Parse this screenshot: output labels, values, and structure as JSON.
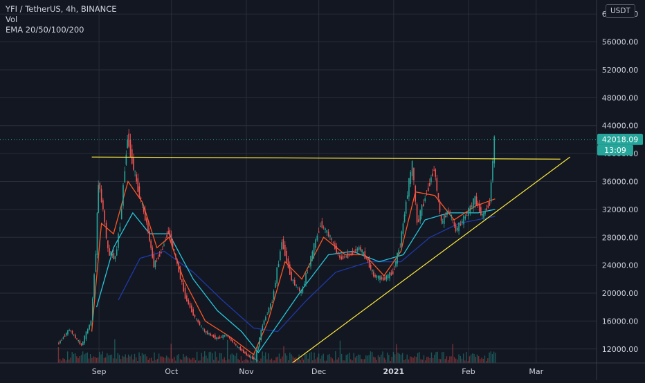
{
  "legend": {
    "symbol": "YFI / TetherUS, 4h, BINANCE",
    "volume": "Vol",
    "ema": "EMA 20/50/100/200"
  },
  "currency_button": "USDT",
  "price_axis": {
    "labels": [
      "12000.00",
      "16000.00",
      "20000.00",
      "24000.00",
      "28000.00",
      "32000.00",
      "36000.00",
      "40000.00",
      "44000.00",
      "48000.00",
      "52000.00",
      "56000.00",
      "60000.00"
    ],
    "last_price": "42018.09",
    "countdown": "13:09",
    "last_price_color": "#26a69a"
  },
  "time_axis": {
    "labels": [
      "Sep",
      "Oct",
      "Nov",
      "Dec",
      "2021",
      "Feb",
      "Mar"
    ]
  },
  "colors": {
    "background": "#131722",
    "grid": "#2a2e39",
    "up_candle": "#26a69a",
    "down_candle": "#ef5350",
    "trendline": "#ffeb3b",
    "ema20": "#ff5722",
    "ema50": "#26c6da",
    "ema100": "#1e3aa8"
  },
  "chart_data": {
    "type": "line",
    "title": "YFI / TetherUS, 4h, BINANCE",
    "ylim": [
      10000,
      62000
    ],
    "y_ticks": [
      12000,
      16000,
      20000,
      24000,
      28000,
      32000,
      36000,
      40000,
      44000,
      48000,
      52000,
      56000,
      60000
    ],
    "x_ticks": [
      "Sep",
      "Oct",
      "Nov",
      "Dec",
      "2021",
      "Feb",
      "Mar"
    ],
    "price_close": [
      {
        "x": "2020-08-15",
        "y": 12600
      },
      {
        "x": "2020-08-20",
        "y": 14800
      },
      {
        "x": "2020-08-25",
        "y": 12500
      },
      {
        "x": "2020-08-29",
        "y": 16000
      },
      {
        "x": "2020-08-31",
        "y": 26000
      },
      {
        "x": "2020-09-01",
        "y": 36000
      },
      {
        "x": "2020-09-03",
        "y": 32000
      },
      {
        "x": "2020-09-05",
        "y": 26000
      },
      {
        "x": "2020-09-08",
        "y": 25000
      },
      {
        "x": "2020-09-10",
        "y": 30000
      },
      {
        "x": "2020-09-12",
        "y": 38000
      },
      {
        "x": "2020-09-13",
        "y": 42500
      },
      {
        "x": "2020-09-15",
        "y": 39000
      },
      {
        "x": "2020-09-18",
        "y": 34000
      },
      {
        "x": "2020-09-21",
        "y": 30000
      },
      {
        "x": "2020-09-24",
        "y": 24000
      },
      {
        "x": "2020-09-27",
        "y": 26000
      },
      {
        "x": "2020-09-30",
        "y": 29000
      },
      {
        "x": "2020-10-03",
        "y": 25000
      },
      {
        "x": "2020-10-07",
        "y": 19500
      },
      {
        "x": "2020-10-11",
        "y": 16500
      },
      {
        "x": "2020-10-15",
        "y": 14500
      },
      {
        "x": "2020-10-20",
        "y": 13500
      },
      {
        "x": "2020-10-24",
        "y": 14000
      },
      {
        "x": "2020-10-28",
        "y": 12500
      },
      {
        "x": "2020-11-02",
        "y": 11000
      },
      {
        "x": "2020-11-05",
        "y": 10500
      },
      {
        "x": "2020-11-08",
        "y": 15500
      },
      {
        "x": "2020-11-12",
        "y": 19000
      },
      {
        "x": "2020-11-16",
        "y": 27500
      },
      {
        "x": "2020-11-20",
        "y": 22000
      },
      {
        "x": "2020-11-24",
        "y": 20000
      },
      {
        "x": "2020-11-28",
        "y": 25000
      },
      {
        "x": "2020-12-02",
        "y": 30000
      },
      {
        "x": "2020-12-06",
        "y": 28000
      },
      {
        "x": "2020-12-10",
        "y": 25000
      },
      {
        "x": "2020-12-14",
        "y": 25500
      },
      {
        "x": "2020-12-18",
        "y": 26500
      },
      {
        "x": "2020-12-21",
        "y": 25000
      },
      {
        "x": "2020-12-24",
        "y": 22500
      },
      {
        "x": "2020-12-28",
        "y": 22000
      },
      {
        "x": "2021-01-01",
        "y": 23000
      },
      {
        "x": "2021-01-04",
        "y": 27000
      },
      {
        "x": "2021-01-07",
        "y": 34500
      },
      {
        "x": "2021-01-09",
        "y": 38500
      },
      {
        "x": "2021-01-11",
        "y": 30000
      },
      {
        "x": "2021-01-15",
        "y": 34500
      },
      {
        "x": "2021-01-18",
        "y": 38000
      },
      {
        "x": "2021-01-21",
        "y": 30000
      },
      {
        "x": "2021-01-24",
        "y": 32000
      },
      {
        "x": "2021-01-27",
        "y": 29000
      },
      {
        "x": "2021-01-31",
        "y": 31000
      },
      {
        "x": "2021-02-04",
        "y": 33500
      },
      {
        "x": "2021-02-07",
        "y": 31000
      },
      {
        "x": "2021-02-10",
        "y": 33000
      },
      {
        "x": "2021-02-12",
        "y": 42018.09
      }
    ],
    "ema20": [
      {
        "x": "2020-08-29",
        "y": 14500
      },
      {
        "x": "2020-09-02",
        "y": 30000
      },
      {
        "x": "2020-09-07",
        "y": 28500
      },
      {
        "x": "2020-09-13",
        "y": 36000
      },
      {
        "x": "2020-09-19",
        "y": 33000
      },
      {
        "x": "2020-09-25",
        "y": 26500
      },
      {
        "x": "2020-09-30",
        "y": 28000
      },
      {
        "x": "2020-10-06",
        "y": 22000
      },
      {
        "x": "2020-10-15",
        "y": 16000
      },
      {
        "x": "2020-10-25",
        "y": 13800
      },
      {
        "x": "2020-11-04",
        "y": 11200
      },
      {
        "x": "2020-11-10",
        "y": 16000
      },
      {
        "x": "2020-11-17",
        "y": 24500
      },
      {
        "x": "2020-11-24",
        "y": 22000
      },
      {
        "x": "2020-12-03",
        "y": 28000
      },
      {
        "x": "2020-12-12",
        "y": 25500
      },
      {
        "x": "2020-12-20",
        "y": 25500
      },
      {
        "x": "2020-12-28",
        "y": 22500
      },
      {
        "x": "2021-01-04",
        "y": 26000
      },
      {
        "x": "2021-01-10",
        "y": 34500
      },
      {
        "x": "2021-01-18",
        "y": 34000
      },
      {
        "x": "2021-01-26",
        "y": 30500
      },
      {
        "x": "2021-02-04",
        "y": 32500
      },
      {
        "x": "2021-02-12",
        "y": 33500
      }
    ],
    "ema50": [
      {
        "x": "2020-08-31",
        "y": 18000
      },
      {
        "x": "2020-09-07",
        "y": 26500
      },
      {
        "x": "2020-09-15",
        "y": 31500
      },
      {
        "x": "2020-09-22",
        "y": 28500
      },
      {
        "x": "2020-09-30",
        "y": 28500
      },
      {
        "x": "2020-10-10",
        "y": 22000
      },
      {
        "x": "2020-10-20",
        "y": 17500
      },
      {
        "x": "2020-10-30",
        "y": 14500
      },
      {
        "x": "2020-11-06",
        "y": 11500
      },
      {
        "x": "2020-11-14",
        "y": 15500
      },
      {
        "x": "2020-11-24",
        "y": 20500
      },
      {
        "x": "2020-12-05",
        "y": 25500
      },
      {
        "x": "2020-12-15",
        "y": 26000
      },
      {
        "x": "2020-12-26",
        "y": 24500
      },
      {
        "x": "2021-01-05",
        "y": 25500
      },
      {
        "x": "2021-01-14",
        "y": 30500
      },
      {
        "x": "2021-01-24",
        "y": 31500
      },
      {
        "x": "2021-02-05",
        "y": 31500
      },
      {
        "x": "2021-02-12",
        "y": 32000
      }
    ],
    "ema100": [
      {
        "x": "2020-09-09",
        "y": 19000
      },
      {
        "x": "2020-09-18",
        "y": 25000
      },
      {
        "x": "2020-09-28",
        "y": 26000
      },
      {
        "x": "2020-10-10",
        "y": 23000
      },
      {
        "x": "2020-10-22",
        "y": 19000
      },
      {
        "x": "2020-11-04",
        "y": 15000
      },
      {
        "x": "2020-11-14",
        "y": 14500
      },
      {
        "x": "2020-11-26",
        "y": 19000
      },
      {
        "x": "2020-12-08",
        "y": 23000
      },
      {
        "x": "2020-12-22",
        "y": 24500
      },
      {
        "x": "2021-01-04",
        "y": 24500
      },
      {
        "x": "2021-01-16",
        "y": 28000
      },
      {
        "x": "2021-01-28",
        "y": 30000
      },
      {
        "x": "2021-02-12",
        "y": 31000
      }
    ],
    "volume_shown": true,
    "trendlines": [
      {
        "name": "resistance",
        "from": {
          "x": "2020-08-29",
          "y": 39500
        },
        "to": {
          "x": "2021-03-11",
          "y": 39200
        }
      },
      {
        "name": "support",
        "from": {
          "x": "2020-11-20",
          "y": 10000
        },
        "to": {
          "x": "2021-03-15",
          "y": 39500
        }
      }
    ],
    "grid": true,
    "legend_placement": "top-left"
  }
}
